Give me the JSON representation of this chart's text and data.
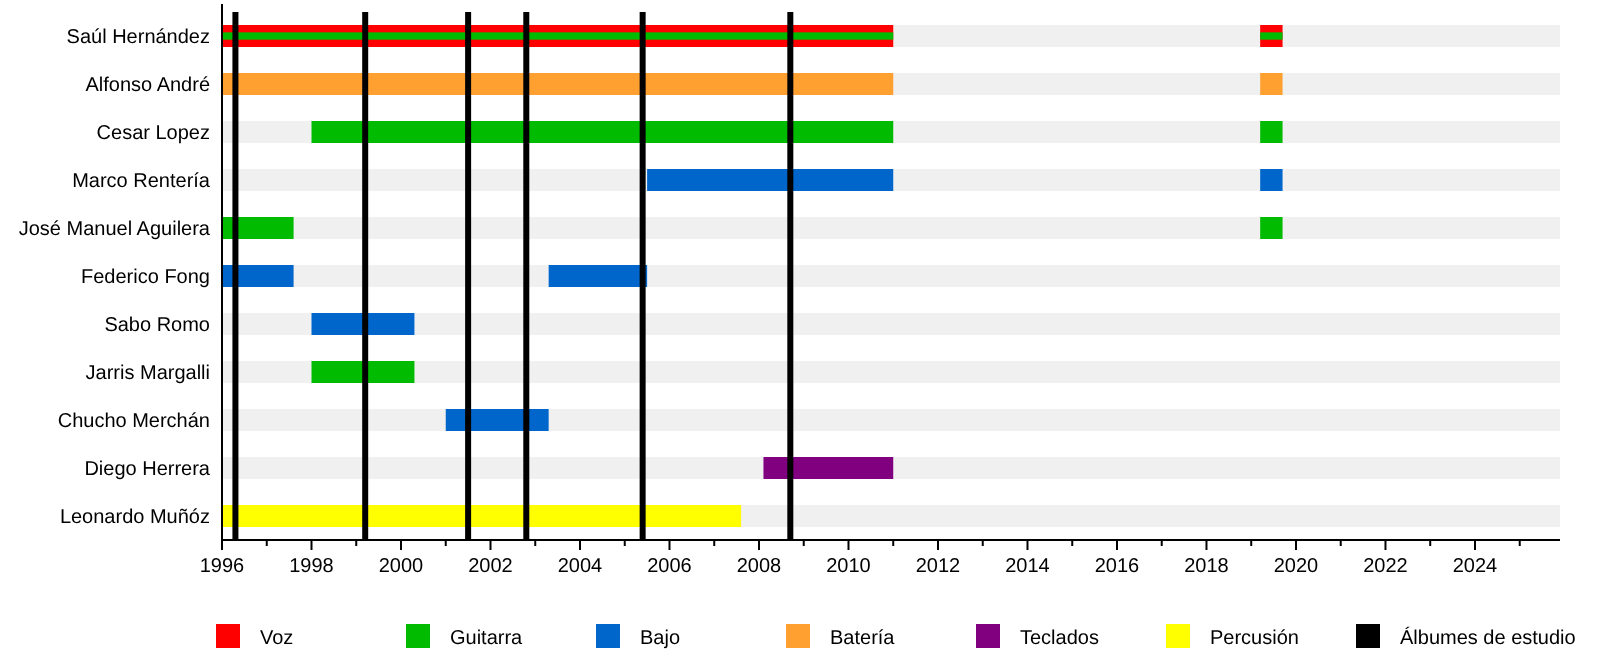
{
  "chart_data": {
    "type": "bar",
    "orientation": "horizontal",
    "categories": [
      "Saúl Hernández",
      "Alfonso André",
      "Cesar Lopez",
      "Marco Rentería",
      "José Manuel Aguilera",
      "Federico Fong",
      "Sabo Romo",
      "Jarris Margalli",
      "Chucho Merchán",
      "Diego Herrera",
      "Leonardo Muñóz"
    ],
    "series": [
      {
        "name": "Voz",
        "color": "#ff0000",
        "base": [
          1996,
          null,
          null,
          null,
          null,
          null,
          null,
          null,
          null,
          null,
          null
        ],
        "values": [
          15.0,
          null,
          null,
          null,
          null,
          null,
          null,
          null,
          null,
          null,
          null
        ]
      },
      {
        "name": "Guitarra",
        "color": "#00bb00",
        "base": [
          1996,
          null,
          1998,
          null,
          1996,
          null,
          null,
          1998,
          null,
          null,
          null
        ],
        "values": [
          15.0,
          null,
          13.0,
          null,
          1.6,
          null,
          null,
          2.3,
          null,
          null,
          null
        ]
      },
      {
        "name": "Bajo",
        "color": "#0066cc",
        "base": [
          null,
          null,
          null,
          2005.5,
          null,
          1996,
          1998,
          null,
          2001,
          null,
          null
        ],
        "values": [
          null,
          null,
          null,
          5.5,
          null,
          1.6,
          2.3,
          null,
          2.3,
          null,
          null
        ]
      },
      {
        "name": "Batería",
        "color": "#ffa030",
        "base": [
          null,
          1996,
          null,
          null,
          null,
          null,
          null,
          null,
          null,
          null,
          null
        ],
        "values": [
          null,
          15.0,
          null,
          null,
          null,
          null,
          null,
          null,
          null,
          null,
          null
        ]
      },
      {
        "name": "Teclados",
        "color": "#800080",
        "base": [
          null,
          null,
          null,
          null,
          null,
          null,
          null,
          null,
          null,
          2008.1,
          null
        ],
        "values": [
          null,
          null,
          null,
          null,
          null,
          null,
          null,
          null,
          null,
          2.9,
          null
        ]
      },
      {
        "name": "Percusión",
        "color": "#ffff00",
        "base": [
          null,
          null,
          null,
          null,
          null,
          null,
          null,
          null,
          null,
          null,
          1996
        ],
        "values": [
          null,
          null,
          null,
          null,
          null,
          null,
          null,
          null,
          null,
          null,
          11.6
        ]
      },
      {
        "color": "#ff0000",
        "base": [
          2019.2,
          null,
          null,
          null,
          null,
          null,
          null,
          null,
          null,
          null,
          null
        ],
        "values": [
          0.5,
          null,
          null,
          null,
          null,
          null,
          null,
          null,
          null,
          null,
          null
        ]
      },
      {
        "color": "#00bb00",
        "base": [
          2019.2,
          null,
          2019.2,
          null,
          2019.2,
          null,
          null,
          null,
          null,
          null,
          null
        ],
        "values": [
          0.5,
          null,
          0.5,
          null,
          0.5,
          null,
          null,
          null,
          null,
          null,
          null
        ]
      },
      {
        "color": "#0066cc",
        "base": [
          null,
          null,
          null,
          2019.2,
          null,
          2003.3,
          null,
          null,
          null,
          null,
          null
        ],
        "values": [
          null,
          null,
          null,
          0.5,
          null,
          2.2,
          null,
          null,
          null,
          null,
          null
        ]
      },
      {
        "color": "#ffa030",
        "base": [
          null,
          2019.2,
          null,
          null,
          null,
          null,
          null,
          null,
          null,
          null,
          null
        ],
        "values": [
          null,
          0.5,
          null,
          null,
          null,
          null,
          null,
          null,
          null,
          null,
          null
        ]
      }
    ],
    "ref_lines": [
      {
        "axis": "x",
        "value": 1996.3,
        "color": "#000000",
        "label": "Álbumes de estudio"
      },
      {
        "axis": "x",
        "value": 1999.2,
        "color": "#000000"
      },
      {
        "axis": "x",
        "value": 2001.5,
        "color": "#000000"
      },
      {
        "axis": "x",
        "value": 2002.8,
        "color": "#000000"
      },
      {
        "axis": "x",
        "value": 2005.4,
        "color": "#000000"
      },
      {
        "axis": "x",
        "value": 2008.7,
        "color": "#000000"
      }
    ],
    "xlim": [
      1996,
      2025.9
    ],
    "xticks": [
      1996,
      {
        "value": 1997,
        "label": null
      },
      1998,
      {
        "value": 1999,
        "label": null
      },
      2000,
      {
        "value": 2001,
        "label": null
      },
      2002,
      {
        "value": 2003,
        "label": null
      },
      2004,
      {
        "value": 2005,
        "label": null
      },
      2006,
      {
        "value": 2007,
        "label": null
      },
      2008,
      {
        "value": 2009,
        "label": null
      },
      2010,
      {
        "value": 2011,
        "label": null
      },
      2012,
      {
        "value": 2013,
        "label": null
      },
      2014,
      {
        "value": 2015,
        "label": null
      },
      2016,
      {
        "value": 2017,
        "label": null
      },
      2018,
      {
        "value": 2019,
        "label": null
      },
      2020,
      {
        "value": 2021,
        "label": null
      },
      2022,
      {
        "value": 2023,
        "label": null
      },
      2024,
      {
        "value": 2025,
        "label": null
      }
    ],
    "legend": "bottom"
  }
}
